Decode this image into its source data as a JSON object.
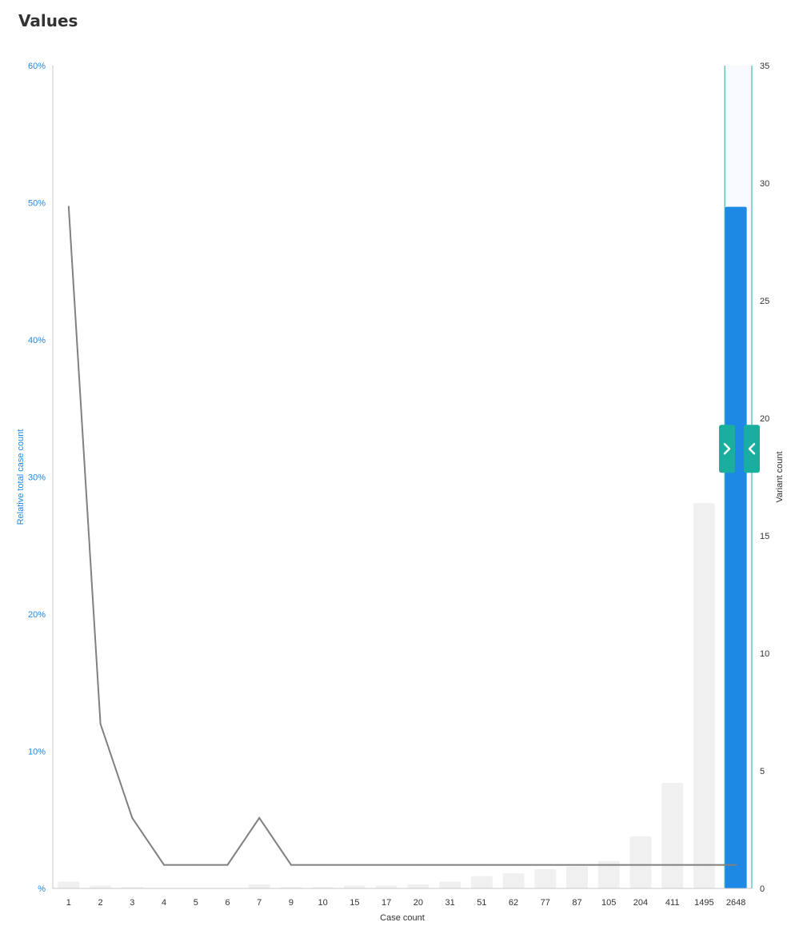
{
  "page": {
    "title": "Values"
  },
  "chart_data": {
    "type": "bar",
    "categories": [
      "1",
      "2",
      "3",
      "4",
      "5",
      "6",
      "7",
      "9",
      "10",
      "15",
      "17",
      "20",
      "31",
      "51",
      "62",
      "77",
      "87",
      "105",
      "204",
      "411",
      "1495",
      "2648"
    ],
    "series": [
      {
        "type": "bar",
        "axis": "left",
        "unit": "%",
        "values": [
          0.5,
          0.2,
          0.1,
          0.0,
          0.0,
          0.0,
          0.3,
          0.1,
          0.1,
          0.2,
          0.2,
          0.3,
          0.5,
          0.9,
          1.1,
          1.4,
          1.6,
          2.0,
          3.8,
          7.7,
          28.1,
          49.7
        ]
      },
      {
        "type": "line",
        "axis": "right",
        "values": [
          29,
          7,
          3,
          1,
          1,
          1,
          3,
          1,
          1,
          1,
          1,
          1,
          1,
          1,
          1,
          1,
          1,
          1,
          1,
          1,
          1,
          1
        ]
      }
    ],
    "selected_category": "2648",
    "xlabel": "Case count",
    "ylabel_left": "Relative total case count",
    "ylabel_right": "Variant count",
    "ylim_left": [
      0,
      60
    ],
    "ylim_right": [
      0,
      35
    ],
    "left_ticks": [
      {
        "value": 0,
        "label": "%"
      },
      {
        "value": 10,
        "label": "10%"
      },
      {
        "value": 20,
        "label": "20%"
      },
      {
        "value": 30,
        "label": "30%"
      },
      {
        "value": 40,
        "label": "40%"
      },
      {
        "value": 50,
        "label": "50%"
      },
      {
        "value": 60,
        "label": "60%"
      }
    ],
    "right_ticks": [
      0,
      5,
      10,
      15,
      20,
      25,
      30,
      35
    ],
    "colors": {
      "bar": "#f0f0f0",
      "bar_selected": "#1e88e5",
      "line": "#808080",
      "handle": "#1aae9f",
      "left_axis_text": "#1e88e5",
      "selection_bg": "#f7f9fc",
      "selection_border": "#1aae9f"
    },
    "icons": {
      "handle_left": "chevron-right-icon",
      "handle_right": "chevron-left-icon"
    }
  }
}
